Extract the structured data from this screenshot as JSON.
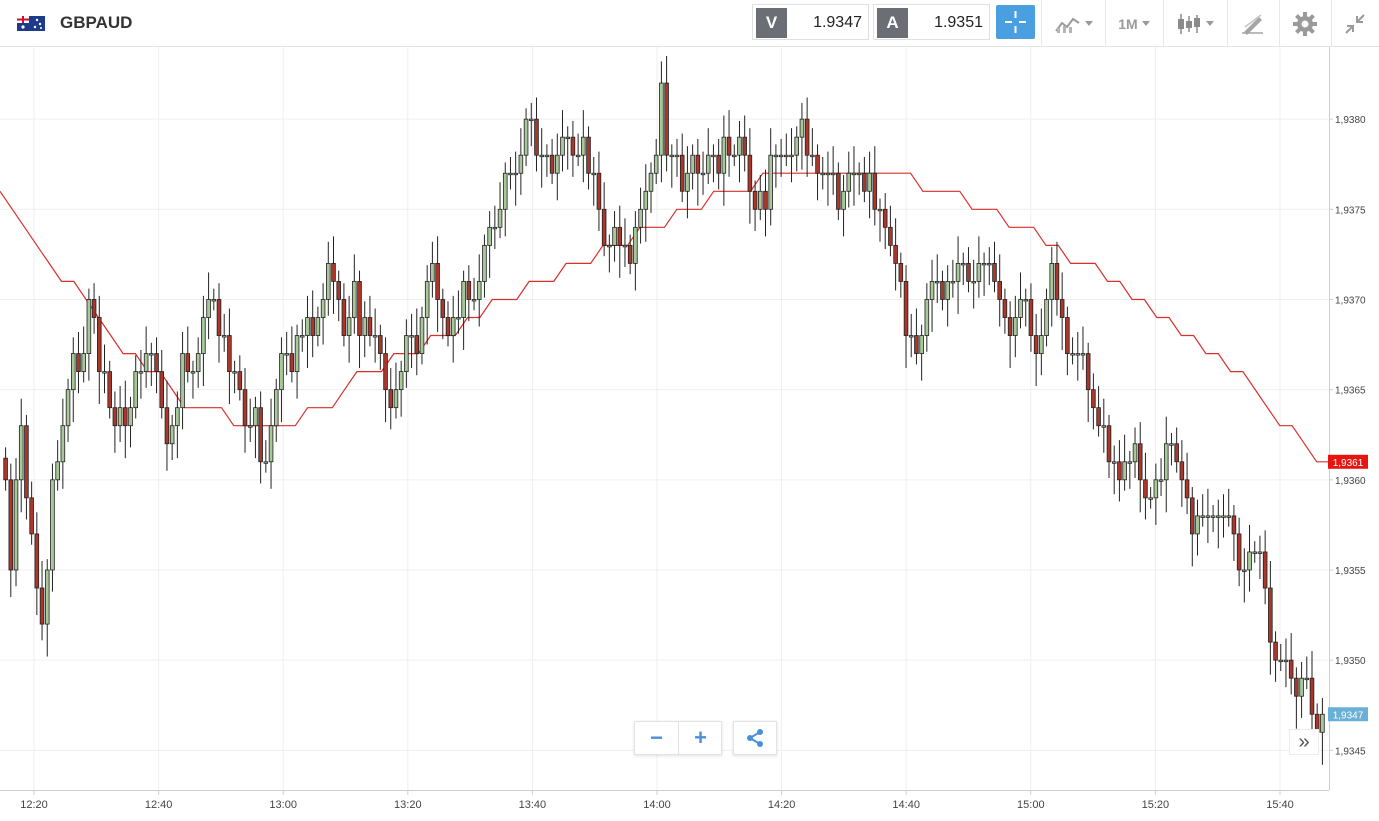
{
  "instrument": {
    "symbol": "GBPAUD",
    "flag_icon": "uk-australia-flag-icon"
  },
  "quotes": {
    "sell_label": "V",
    "sell_price": "1.9347",
    "buy_label": "A",
    "buy_price": "1.9351"
  },
  "toolbar": {
    "crosshair_icon": "crosshair-icon",
    "indicators_icon": "indicators-icon",
    "timeframe_label": "1M",
    "chart_type_icon": "candlestick-icon",
    "drawing_icon": "drawing-tools-icon",
    "settings_icon": "gear-icon",
    "fullscreen_icon": "collapse-icon"
  },
  "controls": {
    "zoom_out_label": "−",
    "zoom_in_label": "+",
    "share_icon": "share-icon",
    "scroll_latest_label": "»"
  },
  "colors": {
    "bull": "#a8c89a",
    "bear": "#a9372b",
    "ma_line": "#d8312b",
    "ma_badge": "#e8140f",
    "price_badge": "#6aafd6",
    "accent": "#4a9fe0"
  },
  "chart_data": {
    "type": "candlestick",
    "interval": "1M",
    "y_tick_labels": [
      "1,9345",
      "1,9350",
      "1,9355",
      "1,9360",
      "1,9365",
      "1,9370",
      "1,9375",
      "1,9380"
    ],
    "y_tick_values": [
      1.9345,
      1.935,
      1.9355,
      1.936,
      1.9365,
      1.937,
      1.9375,
      1.938
    ],
    "x_tick_labels": [
      "12:20",
      "12:40",
      "13:00",
      "13:20",
      "13:40",
      "14:00",
      "14:20",
      "14:40",
      "15:00",
      "15:20",
      "15:40"
    ],
    "ylim": [
      1.93428,
      1.9384
    ],
    "grid": true,
    "last_price_label": "1,9347",
    "ma_last_label": "1,9361",
    "closes": [
      1.936,
      1.9355,
      1.936,
      1.9363,
      1.9359,
      1.9357,
      1.9354,
      1.9352,
      1.9355,
      1.936,
      1.9361,
      1.9363,
      1.9365,
      1.9367,
      1.9366,
      1.9367,
      1.937,
      1.9369,
      1.9366,
      1.9366,
      1.9364,
      1.9363,
      1.9364,
      1.9363,
      1.9364,
      1.9366,
      1.9366,
      1.9367,
      1.9367,
      1.9366,
      1.9364,
      1.9362,
      1.9363,
      1.9364,
      1.9367,
      1.9366,
      1.9366,
      1.9367,
      1.9369,
      1.937,
      1.937,
      1.9368,
      1.9368,
      1.9366,
      1.9366,
      1.9365,
      1.9363,
      1.9363,
      1.9364,
      1.9361,
      1.9361,
      1.9363,
      1.9365,
      1.9367,
      1.9367,
      1.9366,
      1.9368,
      1.9368,
      1.9369,
      1.9368,
      1.9369,
      1.937,
      1.9372,
      1.9371,
      1.937,
      1.9368,
      1.9369,
      1.9371,
      1.9368,
      1.9369,
      1.9368,
      1.9368,
      1.9367,
      1.9365,
      1.9364,
      1.9365,
      1.9366,
      1.9368,
      1.9368,
      1.9367,
      1.9369,
      1.9371,
      1.9372,
      1.937,
      1.9369,
      1.9368,
      1.9369,
      1.9369,
      1.9371,
      1.937,
      1.937,
      1.9371,
      1.9373,
      1.9374,
      1.9374,
      1.9375,
      1.9377,
      1.9377,
      1.9377,
      1.9378,
      1.938,
      1.938,
      1.9378,
      1.9378,
      1.9378,
      1.9377,
      1.9378,
      1.9379,
      1.9379,
      1.9378,
      1.9378,
      1.9379,
      1.9377,
      1.9377,
      1.9375,
      1.9373,
      1.9373,
      1.9374,
      1.9373,
      1.9373,
      1.9372,
      1.9374,
      1.9375,
      1.9376,
      1.9377,
      1.9378,
      1.9382,
      1.9378,
      1.9378,
      1.9378,
      1.9376,
      1.9377,
      1.9378,
      1.9377,
      1.9377,
      1.9378,
      1.9378,
      1.9377,
      1.9379,
      1.9378,
      1.9378,
      1.9379,
      1.9378,
      1.9376,
      1.9375,
      1.9376,
      1.9375,
      1.9378,
      1.9378,
      1.9378,
      1.9378,
      1.9378,
      1.9379,
      1.938,
      1.9378,
      1.9378,
      1.9377,
      1.9377,
      1.9377,
      1.9377,
      1.9375,
      1.9376,
      1.9377,
      1.9377,
      1.9377,
      1.9376,
      1.9377,
      1.9375,
      1.9375,
      1.9374,
      1.9373,
      1.9372,
      1.9371,
      1.9368,
      1.9368,
      1.9367,
      1.9368,
      1.937,
      1.9371,
      1.9371,
      1.937,
      1.9371,
      1.9371,
      1.9372,
      1.9372,
      1.9371,
      1.9371,
      1.9372,
      1.9372,
      1.9372,
      1.9371,
      1.937,
      1.9369,
      1.9368,
      1.9369,
      1.937,
      1.937,
      1.9368,
      1.9367,
      1.9368,
      1.937,
      1.9372,
      1.937,
      1.9369,
      1.9367,
      1.9367,
      1.9367,
      1.9367,
      1.9365,
      1.9364,
      1.9363,
      1.9363,
      1.9361,
      1.9361,
      1.936,
      1.9361,
      1.9361,
      1.9362,
      1.936,
      1.9359,
      1.9359,
      1.936,
      1.936,
      1.9362,
      1.9362,
      1.9361,
      1.936,
      1.9359,
      1.9357,
      1.9358,
      1.9358,
      1.9358,
      1.9358,
      1.9358,
      1.9358,
      1.9358,
      1.9357,
      1.9355,
      1.9355,
      1.9356,
      1.9356,
      1.9356,
      1.9354,
      1.9351,
      1.935,
      1.935,
      1.935,
      1.9349,
      1.9348,
      1.9349,
      1.9349,
      1.9347,
      1.9346,
      1.9347
    ],
    "ma_values": [
      1.9376,
      1.9375,
      1.9374,
      1.9373,
      1.9372,
      1.9371,
      1.9371,
      1.937,
      1.9369,
      1.9368,
      1.9367,
      1.9367,
      1.9366,
      1.9366,
      1.9365,
      1.9364,
      1.9364,
      1.9364,
      1.9364,
      1.9363,
      1.9363,
      1.9363,
      1.9363,
      1.9363,
      1.9363,
      1.9364,
      1.9364,
      1.9364,
      1.9365,
      1.9366,
      1.9366,
      1.9366,
      1.9367,
      1.9367,
      1.9367,
      1.9368,
      1.9368,
      1.9368,
      1.9369,
      1.9369,
      1.937,
      1.937,
      1.937,
      1.9371,
      1.9371,
      1.9371,
      1.9372,
      1.9372,
      1.9372,
      1.9373,
      1.9373,
      1.9373,
      1.9374,
      1.9374,
      1.9374,
      1.9375,
      1.9375,
      1.9375,
      1.9376,
      1.9376,
      1.9376,
      1.9376,
      1.9377,
      1.9377,
      1.9377,
      1.9377,
      1.9377,
      1.9377,
      1.9377,
      1.9377,
      1.9377,
      1.9377,
      1.9377,
      1.9377,
      1.9377,
      1.9376,
      1.9376,
      1.9376,
      1.9376,
      1.9375,
      1.9375,
      1.9375,
      1.9374,
      1.9374,
      1.9374,
      1.9373,
      1.9373,
      1.9372,
      1.9372,
      1.9372,
      1.9371,
      1.9371,
      1.937,
      1.937,
      1.9369,
      1.9369,
      1.9368,
      1.9368,
      1.9367,
      1.9367,
      1.9366,
      1.9366,
      1.9365,
      1.9364,
      1.9363,
      1.9363,
      1.9362,
      1.9361,
      1.9361
    ]
  }
}
